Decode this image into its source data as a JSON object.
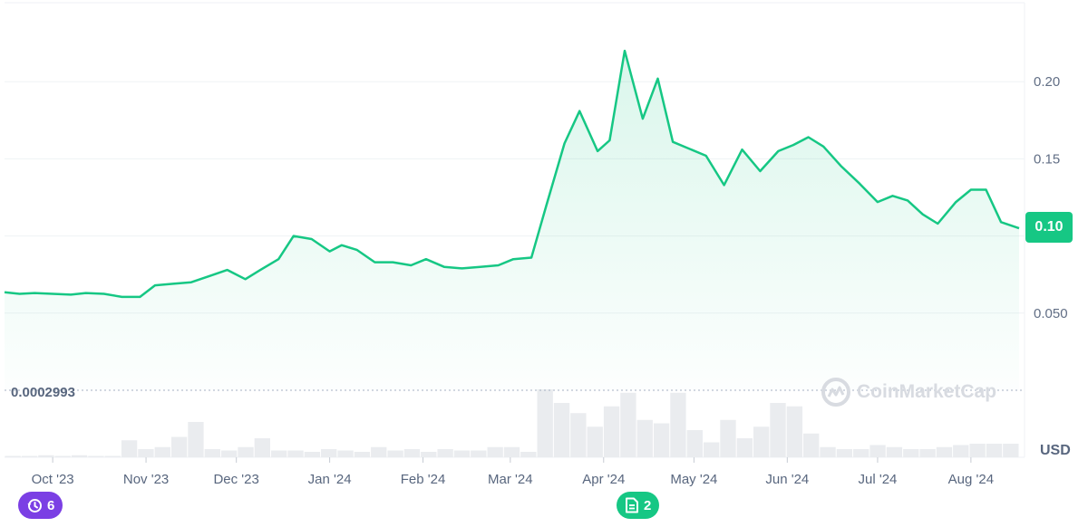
{
  "chart_data": {
    "type": "area",
    "currency": "USD",
    "watermark": "CoinMarketCap",
    "current_price_label": "0.10",
    "all_time_low_label": "0.0002993",
    "y_ticks": [
      "0.050",
      "0.10",
      "0.15",
      "0.20"
    ],
    "y_tick_values": [
      0.05,
      0.1,
      0.15,
      0.2
    ],
    "ylim": [
      0,
      0.25
    ],
    "x_ticks": [
      "Oct '23",
      "Nov '23",
      "Dec '23",
      "Jan '24",
      "Feb '24",
      "Mar '24",
      "Apr '24",
      "May '24",
      "Jun '24",
      "Jul '24",
      "Aug '24"
    ],
    "x_tick_dates": [
      "2023-10-01",
      "2023-11-01",
      "2023-12-01",
      "2024-01-01",
      "2024-02-01",
      "2024-03-01",
      "2024-04-01",
      "2024-05-01",
      "2024-06-01",
      "2024-07-01",
      "2024-08-01"
    ],
    "series": [
      {
        "points": [
          [
            "2023-09-15",
            0.0635
          ],
          [
            "2023-09-20",
            0.0625
          ],
          [
            "2023-09-25",
            0.063
          ],
          [
            "2023-10-01",
            0.0625
          ],
          [
            "2023-10-07",
            0.062
          ],
          [
            "2023-10-12",
            0.063
          ],
          [
            "2023-10-18",
            0.0625
          ],
          [
            "2023-10-24",
            0.0605
          ],
          [
            "2023-10-30",
            0.0605
          ],
          [
            "2023-11-04",
            0.068
          ],
          [
            "2023-11-10",
            0.069
          ],
          [
            "2023-11-16",
            0.07
          ],
          [
            "2023-11-22",
            0.074
          ],
          [
            "2023-11-28",
            0.078
          ],
          [
            "2023-12-04",
            0.072
          ],
          [
            "2023-12-09",
            0.078
          ],
          [
            "2023-12-15",
            0.085
          ],
          [
            "2023-12-20",
            0.1
          ],
          [
            "2023-12-26",
            0.098
          ],
          [
            "2024-01-01",
            0.09
          ],
          [
            "2024-01-05",
            0.094
          ],
          [
            "2024-01-10",
            0.091
          ],
          [
            "2024-01-16",
            0.083
          ],
          [
            "2024-01-22",
            0.083
          ],
          [
            "2024-01-28",
            0.081
          ],
          [
            "2024-02-02",
            0.085
          ],
          [
            "2024-02-08",
            0.08
          ],
          [
            "2024-02-14",
            0.079
          ],
          [
            "2024-02-20",
            0.08
          ],
          [
            "2024-02-26",
            0.081
          ],
          [
            "2024-03-02",
            0.085
          ],
          [
            "2024-03-08",
            0.086
          ],
          [
            "2024-03-13",
            0.12
          ],
          [
            "2024-03-19",
            0.16
          ],
          [
            "2024-03-24",
            0.181
          ],
          [
            "2024-03-30",
            0.155
          ],
          [
            "2024-04-03",
            0.162
          ],
          [
            "2024-04-08",
            0.22
          ],
          [
            "2024-04-14",
            0.176
          ],
          [
            "2024-04-19",
            0.202
          ],
          [
            "2024-04-24",
            0.161
          ],
          [
            "2024-05-05",
            0.152
          ],
          [
            "2024-05-11",
            0.133
          ],
          [
            "2024-05-17",
            0.156
          ],
          [
            "2024-05-23",
            0.142
          ],
          [
            "2024-05-29",
            0.155
          ],
          [
            "2024-06-03",
            0.159
          ],
          [
            "2024-06-08",
            0.164
          ],
          [
            "2024-06-13",
            0.158
          ],
          [
            "2024-06-19",
            0.145
          ],
          [
            "2024-06-25",
            0.134
          ],
          [
            "2024-07-01",
            0.122
          ],
          [
            "2024-07-06",
            0.126
          ],
          [
            "2024-07-11",
            0.123
          ],
          [
            "2024-07-16",
            0.114
          ],
          [
            "2024-07-21",
            0.108
          ],
          [
            "2024-07-27",
            0.122
          ],
          [
            "2024-08-01",
            0.13
          ],
          [
            "2024-08-06",
            0.13
          ],
          [
            "2024-08-11",
            0.109
          ],
          [
            "2024-08-17",
            0.105
          ]
        ]
      }
    ],
    "volume_relative": [
      0.02,
      0.02,
      0.03,
      0.02,
      0.03,
      0.02,
      0.02,
      0.25,
      0.12,
      0.15,
      0.3,
      0.52,
      0.12,
      0.1,
      0.15,
      0.28,
      0.1,
      0.1,
      0.08,
      0.12,
      0.1,
      0.08,
      0.15,
      0.1,
      0.12,
      0.08,
      0.12,
      0.1,
      0.1,
      0.15,
      0.15,
      0.08,
      1.0,
      0.8,
      0.65,
      0.45,
      0.75,
      0.95,
      0.55,
      0.5,
      0.95,
      0.4,
      0.22,
      0.55,
      0.28,
      0.45,
      0.8,
      0.75,
      0.35,
      0.15,
      0.12,
      0.12,
      0.18,
      0.15,
      0.12,
      0.12,
      0.15,
      0.18,
      0.2,
      0.2,
      0.2
    ],
    "colors": {
      "line": "#16c784",
      "grid": "#eff2f5",
      "volume": "#eaecef",
      "events_badge": "#7b3fe4",
      "notes_badge": "#16c784"
    },
    "grid": true
  },
  "badges": {
    "events_count": "6",
    "notes_count": "2"
  }
}
